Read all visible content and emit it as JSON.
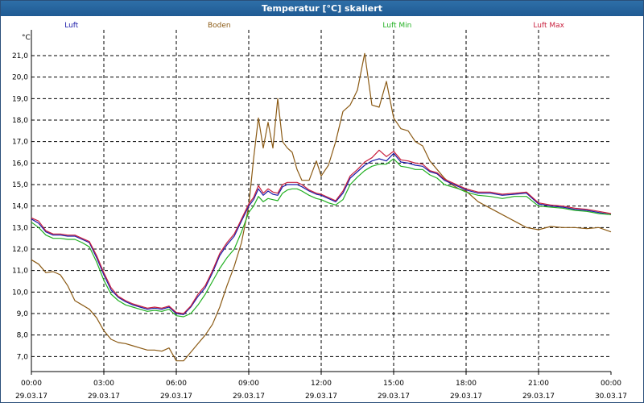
{
  "window": {
    "title": "Temperatur [°C] skaliert"
  },
  "chart_data": {
    "type": "line",
    "title": "Temperatur [°C] skaliert",
    "ylabel": "°C",
    "xlabel": "",
    "xlim": [
      0,
      24
    ],
    "ylim": [
      6.3,
      22.2
    ],
    "grid": true,
    "yticks": [
      7.0,
      8.0,
      9.0,
      10.0,
      11.0,
      12.0,
      13.0,
      14.0,
      15.0,
      16.0,
      17.0,
      18.0,
      19.0,
      20.0,
      21.0
    ],
    "ytick_labels": [
      "7,0",
      "8,0",
      "9,0",
      "10,0",
      "11,0",
      "12,0",
      "13,0",
      "14,0",
      "15,0",
      "16,0",
      "17,0",
      "18,0",
      "19,0",
      "20,0",
      "21,0"
    ],
    "xticks": [
      0,
      3,
      6,
      9,
      12,
      15,
      18,
      21,
      24
    ],
    "xtick_labels": [
      {
        "time": "00:00",
        "date": "29.03.17"
      },
      {
        "time": "03:00",
        "date": "29.03.17"
      },
      {
        "time": "06:00",
        "date": "29.03.17"
      },
      {
        "time": "09:00",
        "date": "29.03.17"
      },
      {
        "time": "12:00",
        "date": "29.03.17"
      },
      {
        "time": "15:00",
        "date": "29.03.17"
      },
      {
        "time": "18:00",
        "date": "29.03.17"
      },
      {
        "time": "21:00",
        "date": "29.03.17"
      },
      {
        "time": "00:00",
        "date": "30.03.17"
      }
    ],
    "series": [
      {
        "name": "Luft",
        "color": "#1a1aa8",
        "legend_pos": 0.11,
        "x": [
          0,
          0.3,
          0.6,
          0.9,
          1.2,
          1.5,
          1.8,
          2.1,
          2.4,
          2.7,
          3.0,
          3.3,
          3.6,
          3.9,
          4.2,
          4.5,
          4.8,
          5.1,
          5.4,
          5.7,
          6.0,
          6.3,
          6.6,
          6.9,
          7.2,
          7.5,
          7.8,
          8.1,
          8.4,
          8.7,
          9.0,
          9.2,
          9.4,
          9.6,
          9.8,
          10.0,
          10.2,
          10.4,
          10.6,
          10.8,
          11.0,
          11.2,
          11.5,
          11.8,
          12.0,
          12.3,
          12.6,
          12.9,
          13.2,
          13.5,
          13.8,
          14.1,
          14.4,
          14.7,
          15.0,
          15.3,
          15.6,
          15.9,
          16.2,
          16.5,
          16.8,
          17.1,
          17.4,
          17.7,
          18.0,
          18.5,
          19.0,
          19.5,
          20.0,
          20.5,
          21.0,
          21.5,
          22.0,
          22.5,
          23.0,
          23.5,
          24.0
        ],
        "y": [
          13.4,
          13.2,
          12.8,
          12.65,
          12.65,
          12.6,
          12.6,
          12.45,
          12.3,
          11.6,
          10.8,
          10.1,
          9.75,
          9.55,
          9.4,
          9.3,
          9.2,
          9.25,
          9.2,
          9.3,
          9.0,
          8.95,
          9.3,
          9.8,
          10.2,
          10.9,
          11.7,
          12.2,
          12.6,
          13.3,
          14.0,
          14.3,
          14.8,
          14.5,
          14.7,
          14.55,
          14.5,
          14.9,
          15.0,
          15.0,
          15.0,
          14.9,
          14.7,
          14.55,
          14.5,
          14.35,
          14.2,
          14.6,
          15.3,
          15.6,
          15.9,
          16.1,
          16.2,
          16.1,
          16.45,
          16.05,
          16.0,
          15.9,
          15.85,
          15.6,
          15.5,
          15.2,
          15.05,
          14.9,
          14.75,
          14.6,
          14.6,
          14.5,
          14.55,
          14.6,
          14.1,
          14.0,
          13.95,
          13.85,
          13.8,
          13.7,
          13.6
        ]
      },
      {
        "name": "Boden",
        "color": "#8b5a14",
        "legend_pos": 0.34,
        "x": [
          0,
          0.3,
          0.6,
          0.9,
          1.2,
          1.5,
          1.8,
          2.1,
          2.4,
          2.7,
          3.0,
          3.3,
          3.6,
          3.9,
          4.2,
          4.5,
          4.8,
          5.1,
          5.4,
          5.7,
          6.0,
          6.3,
          6.6,
          6.9,
          7.2,
          7.5,
          7.8,
          8.1,
          8.4,
          8.7,
          9.0,
          9.2,
          9.4,
          9.6,
          9.8,
          10.0,
          10.2,
          10.4,
          10.6,
          10.8,
          11.0,
          11.2,
          11.5,
          11.8,
          12.0,
          12.3,
          12.6,
          12.9,
          13.2,
          13.5,
          13.8,
          14.1,
          14.4,
          14.7,
          15.0,
          15.3,
          15.6,
          15.9,
          16.2,
          16.5,
          16.8,
          17.1,
          17.4,
          17.7,
          18.0,
          18.5,
          19.0,
          19.5,
          20.0,
          20.5,
          21.0,
          21.5,
          22.0,
          22.5,
          23.0,
          23.5,
          24.0
        ],
        "y": [
          11.5,
          11.3,
          10.9,
          10.95,
          10.8,
          10.3,
          9.6,
          9.4,
          9.2,
          8.8,
          8.2,
          7.8,
          7.65,
          7.6,
          7.5,
          7.4,
          7.3,
          7.3,
          7.25,
          7.4,
          6.8,
          6.8,
          7.2,
          7.6,
          8.0,
          8.5,
          9.3,
          10.3,
          11.2,
          12.3,
          14.0,
          16.2,
          18.1,
          16.7,
          17.9,
          16.7,
          19.0,
          17.0,
          16.7,
          16.5,
          15.7,
          15.2,
          15.2,
          16.1,
          15.4,
          15.9,
          17.0,
          18.4,
          18.7,
          19.4,
          21.1,
          18.7,
          18.6,
          19.8,
          18.1,
          17.6,
          17.5,
          17.0,
          16.8,
          16.1,
          15.7,
          15.3,
          15.0,
          14.8,
          14.7,
          14.2,
          13.9,
          13.6,
          13.3,
          13.0,
          12.9,
          13.05,
          13.0,
          13.0,
          12.95,
          13.0,
          12.8
        ]
      },
      {
        "name": "Luft Min",
        "color": "#22b022",
        "legend_pos": 0.617,
        "x": [
          0,
          0.3,
          0.6,
          0.9,
          1.2,
          1.5,
          1.8,
          2.1,
          2.4,
          2.7,
          3.0,
          3.3,
          3.6,
          3.9,
          4.2,
          4.5,
          4.8,
          5.1,
          5.4,
          5.7,
          6.0,
          6.3,
          6.6,
          6.9,
          7.2,
          7.5,
          7.8,
          8.1,
          8.4,
          8.7,
          9.0,
          9.2,
          9.4,
          9.6,
          9.8,
          10.0,
          10.2,
          10.4,
          10.6,
          10.8,
          11.0,
          11.2,
          11.5,
          11.8,
          12.0,
          12.3,
          12.6,
          12.9,
          13.2,
          13.5,
          13.8,
          14.1,
          14.4,
          14.7,
          15.0,
          15.3,
          15.6,
          15.9,
          16.2,
          16.5,
          16.8,
          17.1,
          17.4,
          17.7,
          18.0,
          18.5,
          19.0,
          19.5,
          20.0,
          20.5,
          21.0,
          21.5,
          22.0,
          22.5,
          23.0,
          23.5,
          24.0
        ],
        "y": [
          13.25,
          13.0,
          12.65,
          12.5,
          12.5,
          12.45,
          12.45,
          12.3,
          12.1,
          11.4,
          10.55,
          9.9,
          9.6,
          9.4,
          9.3,
          9.2,
          9.1,
          9.15,
          9.1,
          9.2,
          8.9,
          8.85,
          9.0,
          9.4,
          9.9,
          10.5,
          11.1,
          11.6,
          12.0,
          12.8,
          13.7,
          14.0,
          14.45,
          14.2,
          14.35,
          14.3,
          14.25,
          14.6,
          14.75,
          14.8,
          14.8,
          14.7,
          14.5,
          14.35,
          14.3,
          14.15,
          14.05,
          14.3,
          15.0,
          15.35,
          15.65,
          15.85,
          15.95,
          15.95,
          16.2,
          15.85,
          15.8,
          15.7,
          15.7,
          15.45,
          15.3,
          15.0,
          14.9,
          14.8,
          14.65,
          14.5,
          14.45,
          14.35,
          14.45,
          14.45,
          14.0,
          13.95,
          13.9,
          13.8,
          13.75,
          13.65,
          13.6
        ]
      },
      {
        "name": "Luft Max",
        "color": "#c81e3c",
        "legend_pos": 0.853,
        "x": [
          0,
          0.3,
          0.6,
          0.9,
          1.2,
          1.5,
          1.8,
          2.1,
          2.4,
          2.7,
          3.0,
          3.3,
          3.6,
          3.9,
          4.2,
          4.5,
          4.8,
          5.1,
          5.4,
          5.7,
          6.0,
          6.3,
          6.6,
          6.9,
          7.2,
          7.5,
          7.8,
          8.1,
          8.4,
          8.7,
          9.0,
          9.2,
          9.4,
          9.6,
          9.8,
          10.0,
          10.2,
          10.4,
          10.6,
          10.8,
          11.0,
          11.2,
          11.5,
          11.8,
          12.0,
          12.3,
          12.6,
          12.9,
          13.2,
          13.5,
          13.8,
          14.1,
          14.4,
          14.7,
          15.0,
          15.3,
          15.6,
          15.9,
          16.2,
          16.5,
          16.8,
          17.1,
          17.4,
          17.7,
          18.0,
          18.5,
          19.0,
          19.5,
          20.0,
          20.5,
          21.0,
          21.5,
          22.0,
          22.5,
          23.0,
          23.5,
          24.0
        ],
        "y": [
          13.45,
          13.3,
          12.85,
          12.7,
          12.7,
          12.65,
          12.65,
          12.5,
          12.35,
          11.7,
          10.9,
          10.2,
          9.8,
          9.6,
          9.45,
          9.35,
          9.25,
          9.3,
          9.25,
          9.35,
          9.05,
          9.0,
          9.35,
          9.9,
          10.3,
          11.0,
          11.8,
          12.3,
          12.7,
          13.4,
          14.1,
          14.4,
          14.95,
          14.6,
          14.8,
          14.65,
          14.6,
          15.0,
          15.1,
          15.1,
          15.1,
          15.0,
          14.75,
          14.6,
          14.55,
          14.4,
          14.25,
          14.7,
          15.4,
          15.7,
          16.05,
          16.25,
          16.6,
          16.3,
          16.55,
          16.15,
          16.1,
          16.0,
          15.95,
          15.65,
          15.55,
          15.25,
          15.1,
          14.95,
          14.8,
          14.65,
          14.65,
          14.55,
          14.6,
          14.65,
          14.15,
          14.05,
          14.0,
          13.9,
          13.85,
          13.75,
          13.65
        ]
      }
    ]
  }
}
